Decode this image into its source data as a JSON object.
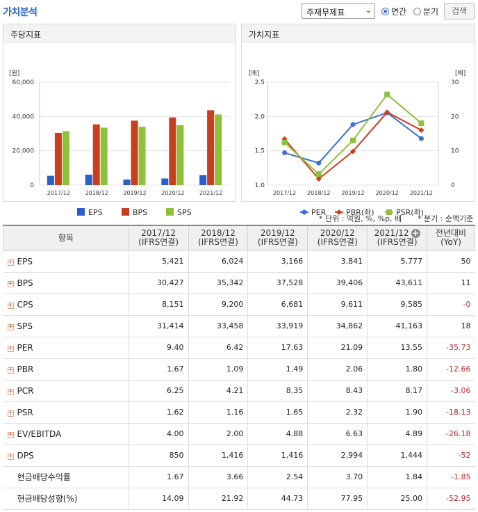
{
  "header": {
    "title": "가치분석",
    "select_value": "주재무제표",
    "radio_year": "연간",
    "radio_quarter": "분기",
    "search": "검색"
  },
  "left_chart": {
    "title": "주당지표",
    "chart_data": {
      "type": "bar",
      "unit_label": "[원]",
      "categories": [
        "2017/12",
        "2018/12",
        "2019/12",
        "2020/12",
        "2021/12"
      ],
      "ylim": [
        0,
        60000
      ],
      "yticks": [
        "60,000",
        "40,000",
        "20,000",
        "0"
      ],
      "series": [
        {
          "name": "EPS",
          "color": "#2a5ec9",
          "values": [
            5421,
            6024,
            3166,
            3841,
            5777
          ]
        },
        {
          "name": "BPS",
          "color": "#c93e1e",
          "values": [
            30427,
            35342,
            37528,
            39406,
            43611
          ]
        },
        {
          "name": "SPS",
          "color": "#8fc03a",
          "values": [
            31414,
            33458,
            33919,
            34862,
            41163
          ]
        }
      ]
    }
  },
  "right_chart": {
    "title": "가치지표",
    "chart_data": {
      "type": "line",
      "left_unit": "[배]",
      "right_unit": "[배]",
      "categories": [
        "2017/12",
        "2018/12",
        "2019/12",
        "2020/12",
        "2021/12"
      ],
      "left_ylim": [
        1.0,
        2.5
      ],
      "right_ylim": [
        0,
        30
      ],
      "left_ticks": [
        "2.5",
        "2.0",
        "1.5",
        "1.0"
      ],
      "right_ticks": [
        "30",
        "20",
        "10",
        "0"
      ],
      "series": [
        {
          "name": "PER",
          "axis": "right",
          "color": "#3a6fd8",
          "marker": "circle",
          "values": [
            9.4,
            6.42,
            17.63,
            21.09,
            13.55
          ]
        },
        {
          "name": "PBR(좌)",
          "axis": "left",
          "color": "#c93e1e",
          "marker": "diamond",
          "values": [
            1.67,
            1.09,
            1.49,
            2.06,
            1.8
          ]
        },
        {
          "name": "PSR(좌)",
          "axis": "left",
          "color": "#8fc03a",
          "marker": "square",
          "values": [
            1.62,
            1.16,
            1.65,
            2.32,
            1.9
          ]
        }
      ]
    }
  },
  "notes": {
    "unit": "* 단위 : 억원, %, %p, 배",
    "quarter": "* 분기 : 순액기준"
  },
  "table": {
    "headers": [
      "항목",
      "2017/12\n(IFRS연결)",
      "2018/12\n(IFRS연결)",
      "2019/12\n(IFRS연결)",
      "2020/12\n(IFRS연결)",
      "2021/12\n(IFRS연결)",
      "전년대비\n(YoY)"
    ],
    "rows": [
      {
        "label": "EPS",
        "plus": true,
        "values": [
          "5,421",
          "6,024",
          "3,166",
          "3,841",
          "5,777",
          "50"
        ]
      },
      {
        "label": "BPS",
        "plus": true,
        "values": [
          "30,427",
          "35,342",
          "37,528",
          "39,406",
          "43,611",
          "11"
        ]
      },
      {
        "label": "CPS",
        "plus": true,
        "values": [
          "8,151",
          "9,200",
          "6,681",
          "9,611",
          "9,585",
          "-0"
        ]
      },
      {
        "label": "SPS",
        "plus": true,
        "values": [
          "31,414",
          "33,458",
          "33,919",
          "34,862",
          "41,163",
          "18"
        ]
      },
      {
        "label": "PER",
        "plus": true,
        "values": [
          "9.40",
          "6.42",
          "17.63",
          "21.09",
          "13.55",
          "-35.73"
        ]
      },
      {
        "label": "PBR",
        "plus": true,
        "values": [
          "1.67",
          "1.09",
          "1.49",
          "2.06",
          "1.80",
          "-12.66"
        ]
      },
      {
        "label": "PCR",
        "plus": true,
        "values": [
          "6.25",
          "4.21",
          "8.35",
          "8.43",
          "8.17",
          "-3.06"
        ]
      },
      {
        "label": "PSR",
        "plus": true,
        "values": [
          "1.62",
          "1.16",
          "1.65",
          "2.32",
          "1.90",
          "-18.13"
        ]
      },
      {
        "label": "EV/EBITDA",
        "plus": true,
        "values": [
          "4.00",
          "2.00",
          "4.88",
          "6.63",
          "4.89",
          "-26.18"
        ]
      },
      {
        "label": "DPS",
        "plus": true,
        "values": [
          "850",
          "1,416",
          "1,416",
          "2,994",
          "1,444",
          "-52"
        ]
      },
      {
        "label": "현금배당수익률",
        "plus": false,
        "values": [
          "1.67",
          "3.66",
          "2.54",
          "3.70",
          "1.84",
          "-1.85"
        ]
      },
      {
        "label": "현금배당성향(%)",
        "plus": false,
        "values": [
          "14.09",
          "21.92",
          "44.73",
          "77.95",
          "25.00",
          "-52.95"
        ]
      }
    ]
  }
}
